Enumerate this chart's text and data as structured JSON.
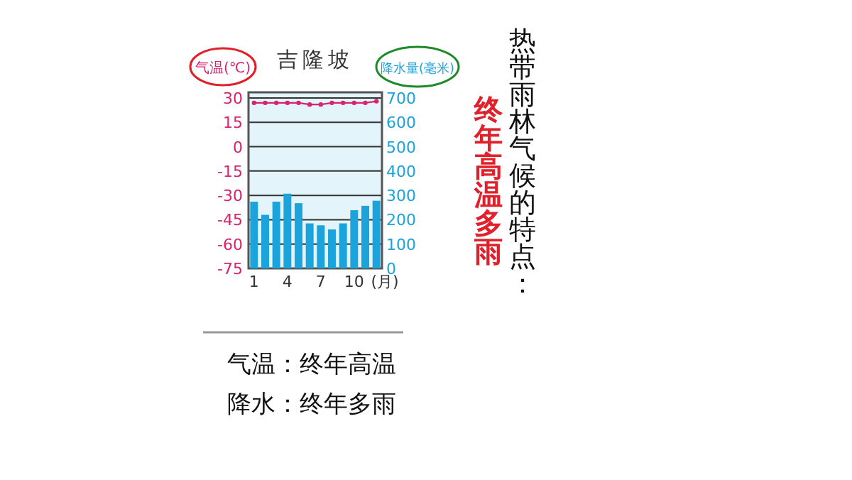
{
  "chart_data": {
    "type": "bar",
    "title": "吉隆坡",
    "ylabel": "气温(℃)",
    "y2label": "降水量(毫米)",
    "xlabel": "(月)",
    "categories": [
      "1",
      null,
      null,
      "4",
      null,
      null,
      "7",
      null,
      null,
      "10",
      null,
      null
    ],
    "series": [
      {
        "axis": "y2",
        "color": "#1ba3dc",
        "values": [
          274,
          220,
          274,
          307,
          268,
          185,
          177,
          160,
          185,
          239,
          257,
          278
        ]
      },
      {
        "type": "line",
        "axis": "y",
        "color": "#d6246e",
        "marker": "circle",
        "values": [
          27,
          27,
          27,
          27,
          27,
          26,
          26,
          27,
          27,
          27,
          27,
          28
        ]
      }
    ],
    "ylim": [
      -75,
      30
    ],
    "yticks": [
      -75,
      -60,
      -45,
      -30,
      -15,
      0,
      15,
      30
    ],
    "y2lim": [
      0,
      700
    ],
    "y2ticks": [
      0,
      100,
      200,
      300,
      400,
      500,
      600,
      700
    ],
    "grid": "y",
    "annotations": [
      "热带雨林气候的特点：",
      "终年高温多雨",
      "气温：终年高温",
      "降水：终年多雨"
    ]
  }
}
